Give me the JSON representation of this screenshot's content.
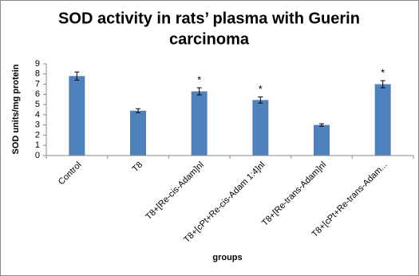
{
  "chart_data": {
    "type": "bar",
    "title_lines": [
      "SOD activity in rats’ plasma with Guerin",
      "carcinoma"
    ],
    "x_label": "groups",
    "y_label": "SOD units/mg protein",
    "categories": [
      "Control",
      "T8",
      "T8+[Re-cis-Adam]nl",
      "T8+[cPt+Re-cis-Adam 1:4]nl",
      "T8+[Re-trans-Adam]nl",
      "T8+[cPt+Re-trans-Adam..."
    ],
    "values": [
      7.8,
      4.4,
      6.3,
      5.45,
      3.0,
      7.0
    ],
    "errors": [
      0.4,
      0.2,
      0.35,
      0.3,
      0.12,
      0.35
    ],
    "markers": [
      null,
      null,
      "*",
      "*",
      null,
      "*"
    ],
    "color": "#4f81bd",
    "ylim": [
      0,
      9
    ],
    "yticks": [
      0,
      1,
      2,
      3,
      4,
      5,
      6,
      7,
      8,
      9
    ],
    "grid": false
  }
}
